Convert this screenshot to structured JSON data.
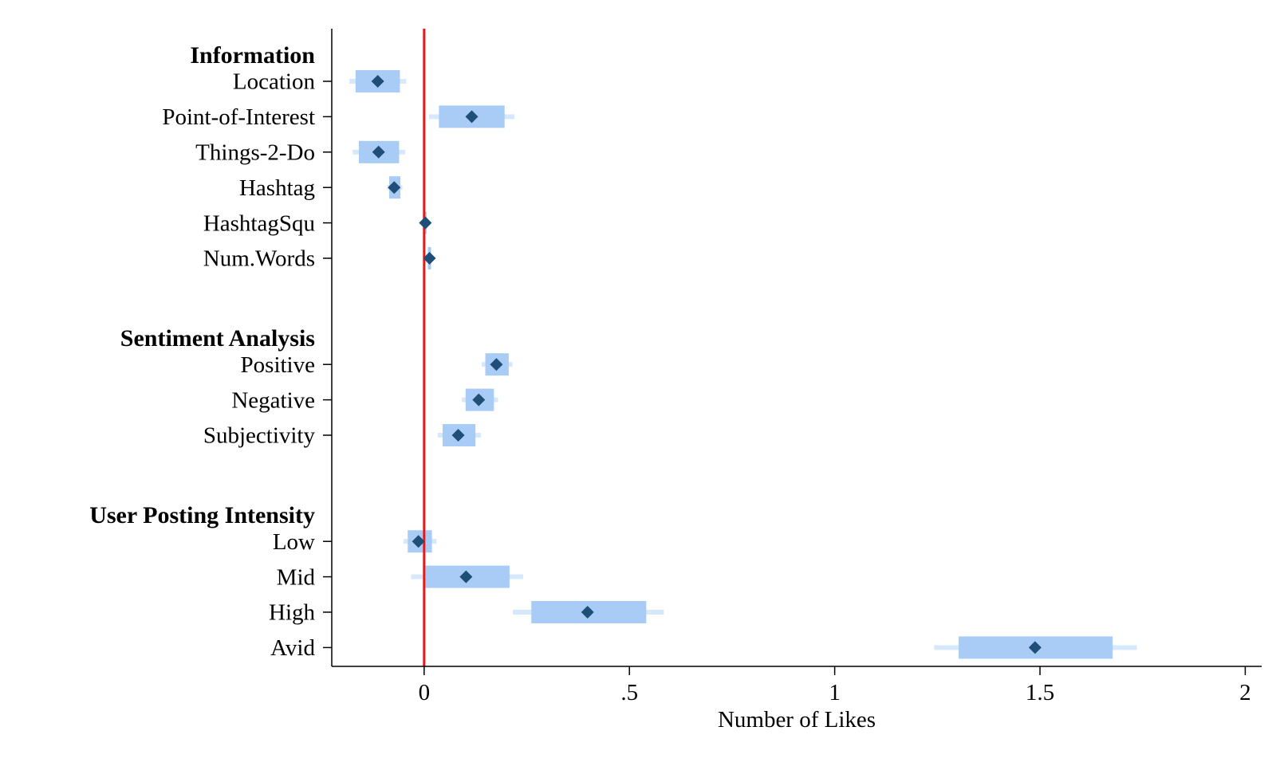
{
  "chart_data": {
    "type": "scatter",
    "subtype": "coefficient-plot",
    "xlabel": "Number of Likes",
    "ylabel": "",
    "xlim": [
      -0.225,
      2.04
    ],
    "xticks": [
      {
        "value": 0,
        "label": "0"
      },
      {
        "value": 0.5,
        "label": ".5"
      },
      {
        "value": 1,
        "label": "1"
      },
      {
        "value": 1.5,
        "label": "1.5"
      },
      {
        "value": 2,
        "label": "2"
      }
    ],
    "reference_line": {
      "x": 0,
      "color": "#e31a1c"
    },
    "colors": {
      "point": "#1f4e79",
      "ci_inner": "#a8ccf5",
      "ci_outer": "#d6e8fb"
    },
    "groups": [
      {
        "label": "Information",
        "rows": [
          {
            "label": "Location",
            "estimate": -0.113,
            "ci_inner": [
              -0.167,
              -0.059
            ],
            "ci_outer": [
              -0.182,
              -0.044
            ]
          },
          {
            "label": "Point-of-Interest",
            "estimate": 0.116,
            "ci_inner": [
              0.036,
              0.196
            ],
            "ci_outer": [
              0.012,
              0.22
            ]
          },
          {
            "label": "Things-2-Do",
            "estimate": -0.111,
            "ci_inner": [
              -0.159,
              -0.061
            ],
            "ci_outer": [
              -0.174,
              -0.046
            ]
          },
          {
            "label": "Hashtag",
            "estimate": -0.073,
            "ci_inner": [
              -0.085,
              -0.058
            ],
            "ci_outer": [
              -0.09,
              -0.053
            ]
          },
          {
            "label": "HashtagSqu",
            "estimate": 0.003,
            "ci_inner": [
              0.0,
              0.006
            ],
            "ci_outer": [
              -0.002,
              0.008
            ]
          },
          {
            "label": "Num.Words",
            "estimate": 0.013,
            "ci_inner": [
              0.009,
              0.017
            ],
            "ci_outer": [
              0.007,
              0.019
            ]
          }
        ]
      },
      {
        "label": "Sentiment Analysis",
        "rows": [
          {
            "label": "Positive",
            "estimate": 0.176,
            "ci_inner": [
              0.149,
              0.206
            ],
            "ci_outer": [
              0.14,
              0.215
            ]
          },
          {
            "label": "Negative",
            "estimate": 0.133,
            "ci_inner": [
              0.101,
              0.17
            ],
            "ci_outer": [
              0.092,
              0.18
            ]
          },
          {
            "label": "Subjectivity",
            "estimate": 0.083,
            "ci_inner": [
              0.045,
              0.125
            ],
            "ci_outer": [
              0.033,
              0.138
            ]
          }
        ]
      },
      {
        "label": "User Posting Intensity",
        "rows": [
          {
            "label": "Low",
            "estimate": -0.014,
            "ci_inner": [
              -0.04,
              0.019
            ],
            "ci_outer": [
              -0.05,
              0.03
            ]
          },
          {
            "label": "Mid",
            "estimate": 0.102,
            "ci_inner": [
              0.0,
              0.208
            ],
            "ci_outer": [
              -0.032,
              0.241
            ]
          },
          {
            "label": "High",
            "estimate": 0.398,
            "ci_inner": [
              0.261,
              0.541
            ],
            "ci_outer": [
              0.216,
              0.584
            ]
          },
          {
            "label": "Avid",
            "estimate": 1.488,
            "ci_inner": [
              1.302,
              1.677
            ],
            "ci_outer": [
              1.242,
              1.736
            ]
          }
        ]
      }
    ]
  }
}
